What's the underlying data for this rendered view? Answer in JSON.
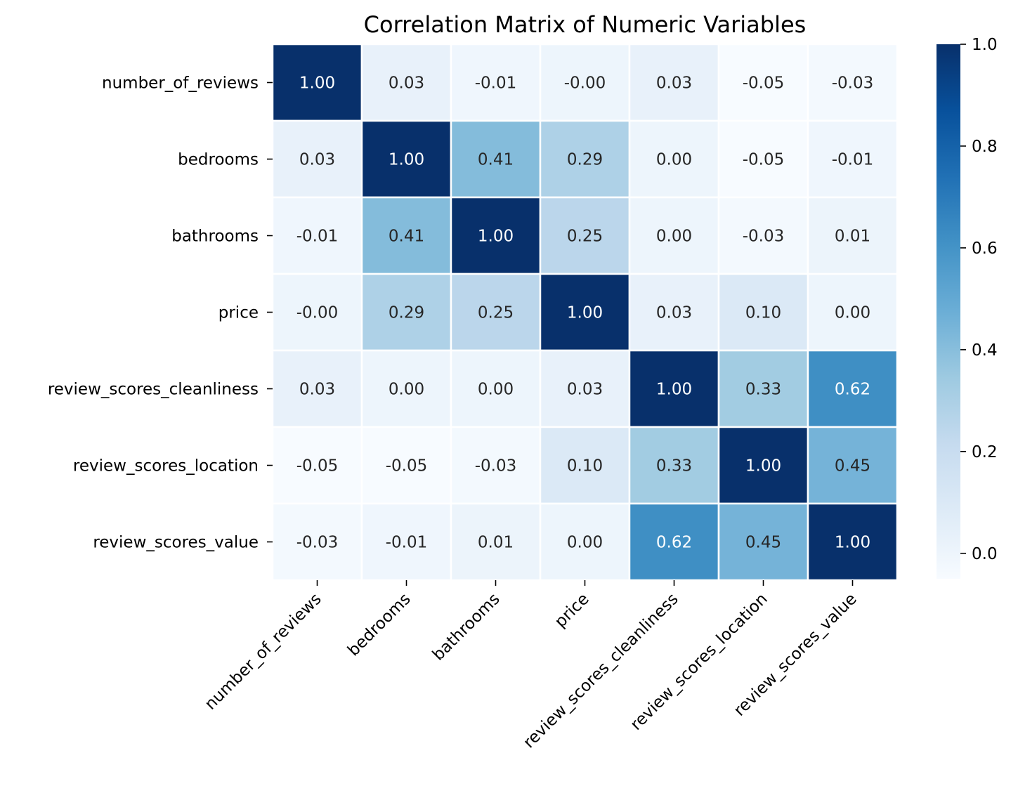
{
  "chart_data": {
    "type": "heatmap",
    "title": "Correlation Matrix of Numeric Variables",
    "xlabel": "",
    "ylabel": "",
    "rows": [
      "number_of_reviews",
      "bedrooms",
      "bathrooms",
      "price",
      "review_scores_cleanliness",
      "review_scores_location",
      "review_scores_value"
    ],
    "columns": [
      "number_of_reviews",
      "bedrooms",
      "bathrooms",
      "price",
      "review_scores_cleanliness",
      "review_scores_location",
      "review_scores_value"
    ],
    "values": [
      [
        1.0,
        0.03,
        -0.01,
        -0.0,
        0.03,
        -0.05,
        -0.03
      ],
      [
        0.03,
        1.0,
        0.41,
        0.29,
        0.0,
        -0.05,
        -0.01
      ],
      [
        -0.01,
        0.41,
        1.0,
        0.25,
        0.0,
        -0.03,
        0.01
      ],
      [
        -0.0,
        0.29,
        0.25,
        1.0,
        0.03,
        0.1,
        0.0
      ],
      [
        0.03,
        0.0,
        0.0,
        0.03,
        1.0,
        0.33,
        0.62
      ],
      [
        -0.05,
        -0.05,
        -0.03,
        0.1,
        0.33,
        1.0,
        0.45
      ],
      [
        -0.03,
        -0.01,
        0.01,
        0.0,
        0.62,
        0.45,
        1.0
      ]
    ],
    "cell_labels": [
      [
        "1.00",
        "0.03",
        "-0.01",
        "-0.00",
        "0.03",
        "-0.05",
        "-0.03"
      ],
      [
        "0.03",
        "1.00",
        "0.41",
        "0.29",
        "0.00",
        "-0.05",
        "-0.01"
      ],
      [
        "-0.01",
        "0.41",
        "1.00",
        "0.25",
        "0.00",
        "-0.03",
        "0.01"
      ],
      [
        "-0.00",
        "0.29",
        "0.25",
        "1.00",
        "0.03",
        "0.10",
        "0.00"
      ],
      [
        "0.03",
        "0.00",
        "0.00",
        "0.03",
        "1.00",
        "0.33",
        "0.62"
      ],
      [
        "-0.05",
        "-0.05",
        "-0.03",
        "0.10",
        "0.33",
        "1.00",
        "0.45"
      ],
      [
        "-0.03",
        "-0.01",
        "0.01",
        "0.00",
        "0.62",
        "0.45",
        "1.00"
      ]
    ],
    "colormap": "Blues",
    "vmin": -0.05,
    "vmax": 1.0,
    "colorbar": {
      "ticks": [
        0.0,
        0.2,
        0.4,
        0.6,
        0.8,
        1.0
      ],
      "tick_labels": [
        "0.0",
        "0.2",
        "0.4",
        "0.6",
        "0.8",
        "1.0"
      ]
    },
    "colors": {
      "text_dark": "#262626",
      "text_light": "#ffffff",
      "cell_border": "#ffffff"
    }
  }
}
